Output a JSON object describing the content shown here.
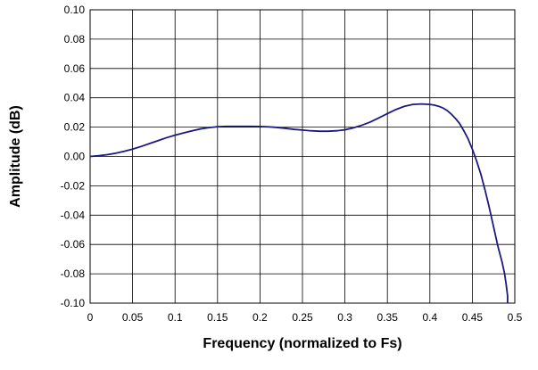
{
  "chart_data": {
    "type": "line",
    "title": "",
    "xlabel": "Frequency (normalized to Fs)",
    "ylabel": "Amplitude (dB)",
    "xlim": [
      0,
      0.5
    ],
    "ylim": [
      -0.1,
      0.1
    ],
    "grid": true,
    "legend": "none",
    "x_ticks": [
      "0",
      "0.05",
      "0.1",
      "0.15",
      "0.2",
      "0.25",
      "0.3",
      "0.35",
      "0.4",
      "0.45",
      "0.5"
    ],
    "y_ticks": [
      "0.10",
      "0.08",
      "0.06",
      "0.04",
      "0.02",
      "0.00",
      "-0.02",
      "-0.04",
      "-0.06",
      "-0.08",
      "-0.10"
    ],
    "series": [
      {
        "color": "#1a1a80",
        "x": [
          0,
          0.01,
          0.02,
          0.03,
          0.04,
          0.05,
          0.06,
          0.07,
          0.08,
          0.09,
          0.1,
          0.11,
          0.12,
          0.13,
          0.14,
          0.15,
          0.16,
          0.17,
          0.18,
          0.19,
          0.2,
          0.21,
          0.22,
          0.23,
          0.24,
          0.25,
          0.26,
          0.27,
          0.28,
          0.29,
          0.3,
          0.31,
          0.32,
          0.33,
          0.34,
          0.35,
          0.36,
          0.37,
          0.38,
          0.39,
          0.4,
          0.405,
          0.41,
          0.415,
          0.42,
          0.425,
          0.43,
          0.435,
          0.44,
          0.445,
          0.45,
          0.455,
          0.46,
          0.465,
          0.47,
          0.475,
          0.48,
          0.485,
          0.488,
          0.49,
          0.4915,
          0.4915
        ],
        "y": [
          0.0,
          0.0005,
          0.0012,
          0.0022,
          0.0035,
          0.005,
          0.0068,
          0.0088,
          0.0108,
          0.0128,
          0.0145,
          0.016,
          0.0175,
          0.0188,
          0.0197,
          0.0203,
          0.0205,
          0.0205,
          0.0205,
          0.0205,
          0.0204,
          0.0202,
          0.0198,
          0.0192,
          0.0185,
          0.018,
          0.0175,
          0.0172,
          0.0172,
          0.0175,
          0.0182,
          0.0195,
          0.0213,
          0.0235,
          0.0263,
          0.0292,
          0.032,
          0.0342,
          0.0355,
          0.0358,
          0.0355,
          0.035,
          0.0343,
          0.0332,
          0.0315,
          0.029,
          0.026,
          0.0225,
          0.0175,
          0.012,
          0.005,
          -0.003,
          -0.012,
          -0.023,
          -0.035,
          -0.048,
          -0.061,
          -0.072,
          -0.08,
          -0.088,
          -0.095,
          -0.1
        ]
      }
    ]
  }
}
